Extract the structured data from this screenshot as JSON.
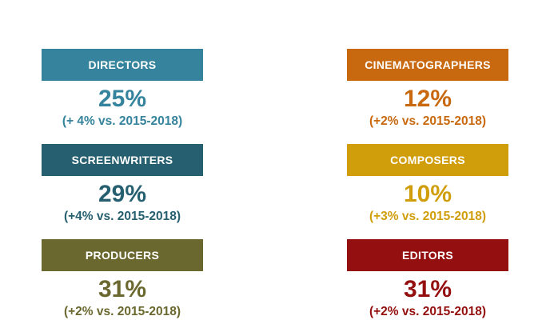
{
  "comparison_period": "2015-2018",
  "columns": [
    {
      "blocks": [
        {
          "label": "DIRECTORS",
          "value": "25%",
          "delta": "(+ 4% vs. 2015-2018)",
          "color": "#35839C"
        },
        {
          "label": "SCREENWRITERS",
          "value": "29%",
          "delta": "(+4% vs. 2015-2018)",
          "color": "#265F6F"
        },
        {
          "label": "PRODUCERS",
          "value": "31%",
          "delta": "(+2% vs. 2015-2018)",
          "color": "#6A682F"
        }
      ]
    },
    {
      "blocks": [
        {
          "label": "CINEMATOGRAPHERS",
          "value": "12%",
          "delta": "(+2% vs. 2015-2018)",
          "color": "#C8690F"
        },
        {
          "label": "COMPOSERS",
          "value": "10%",
          "delta": "(+3% vs. 2015-2018)",
          "color": "#D19E0B"
        },
        {
          "label": "EDITORS",
          "value": "31%",
          "delta": "(+2% vs. 2015-2018)",
          "color": "#940F0F"
        }
      ]
    }
  ],
  "chart_data": {
    "type": "table",
    "title": "",
    "categories": [
      "DIRECTORS",
      "SCREENWRITERS",
      "PRODUCERS",
      "CINEMATOGRAPHERS",
      "COMPOSERS",
      "EDITORS"
    ],
    "values": [
      25,
      29,
      31,
      12,
      10,
      31
    ],
    "deltas_vs_2015_2018": [
      4,
      4,
      2,
      2,
      3,
      2
    ],
    "value_unit": "%",
    "comparison_label": "vs. 2015-2018",
    "colors": [
      "#35839C",
      "#265F6F",
      "#6A682F",
      "#C8690F",
      "#D19E0B",
      "#940F0F"
    ],
    "layout": "two columns of stat blocks: header bar, percentage, delta note"
  }
}
